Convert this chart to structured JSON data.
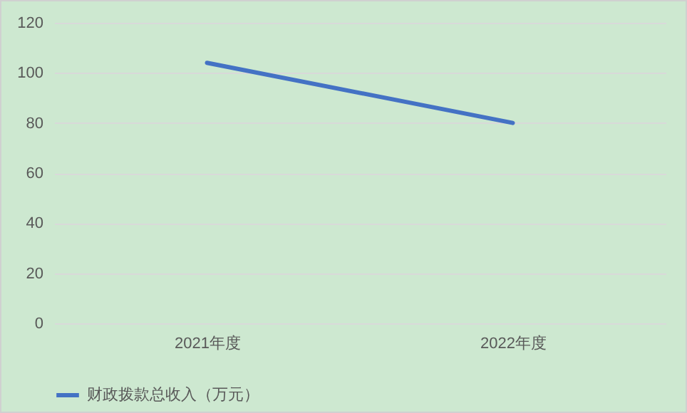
{
  "chart_data": {
    "type": "line",
    "categories": [
      "2021年度",
      "2022年度"
    ],
    "series": [
      {
        "name": "财政拨款总收入（万元）",
        "color": "#4472c4",
        "values": [
          104,
          80
        ]
      }
    ],
    "ylim": [
      0,
      120
    ],
    "yticks": [
      0,
      20,
      40,
      60,
      80,
      100,
      120
    ],
    "grid": "y",
    "legend": "bottom",
    "marker": "none",
    "line_style": "solid"
  }
}
